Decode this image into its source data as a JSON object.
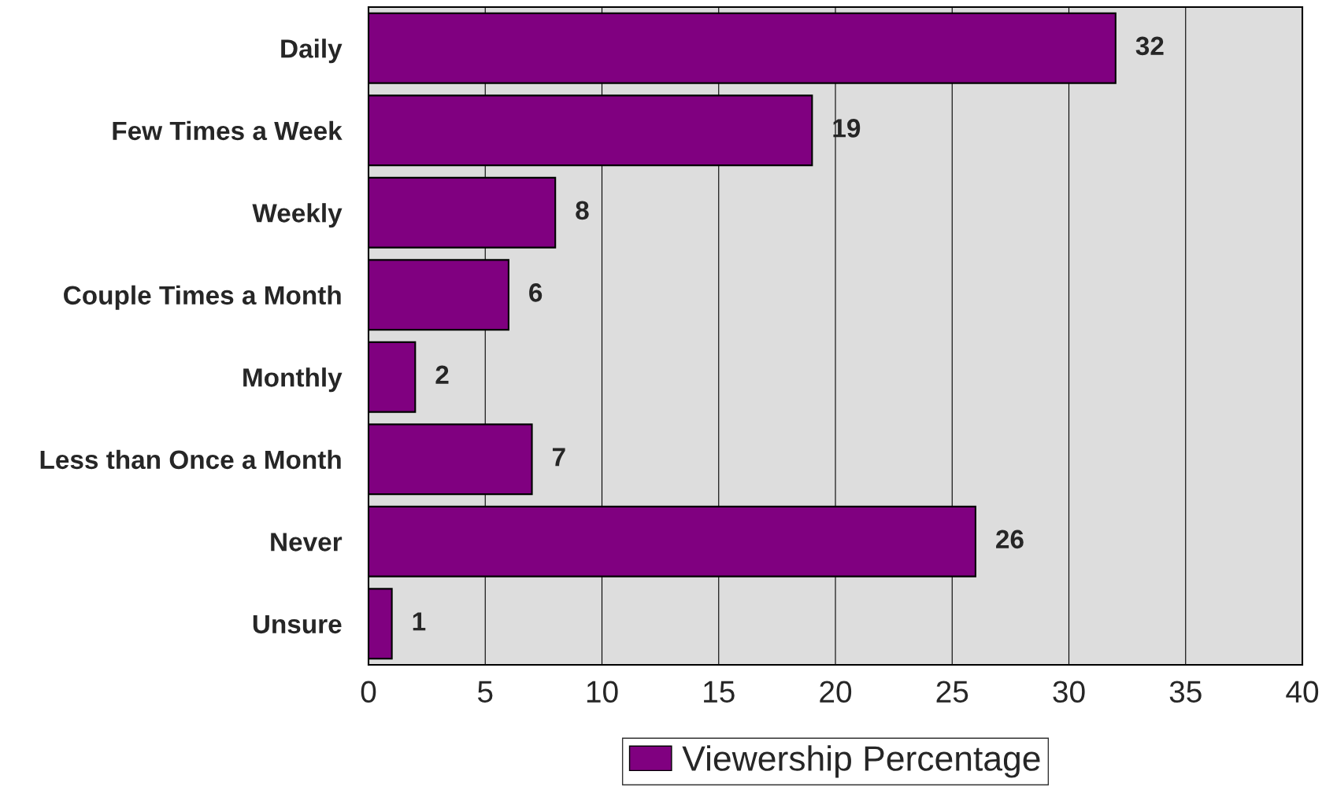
{
  "chart_data": {
    "type": "bar",
    "orientation": "horizontal",
    "categories": [
      "Daily",
      "Few Times a Week",
      "Weekly",
      "Couple Times a Month",
      "Monthly",
      "Less than Once a Month",
      "Never",
      "Unsure"
    ],
    "series": [
      {
        "name": "Viewership Percentage",
        "color": "#800080",
        "values": [
          32,
          19,
          8,
          6,
          2,
          7,
          26,
          1
        ]
      }
    ],
    "xlim": [
      0,
      40
    ],
    "xticks": [
      0,
      5,
      10,
      15,
      20,
      25,
      30,
      35,
      40
    ],
    "grid": "x",
    "legend": "bottom",
    "data_labels": true
  }
}
